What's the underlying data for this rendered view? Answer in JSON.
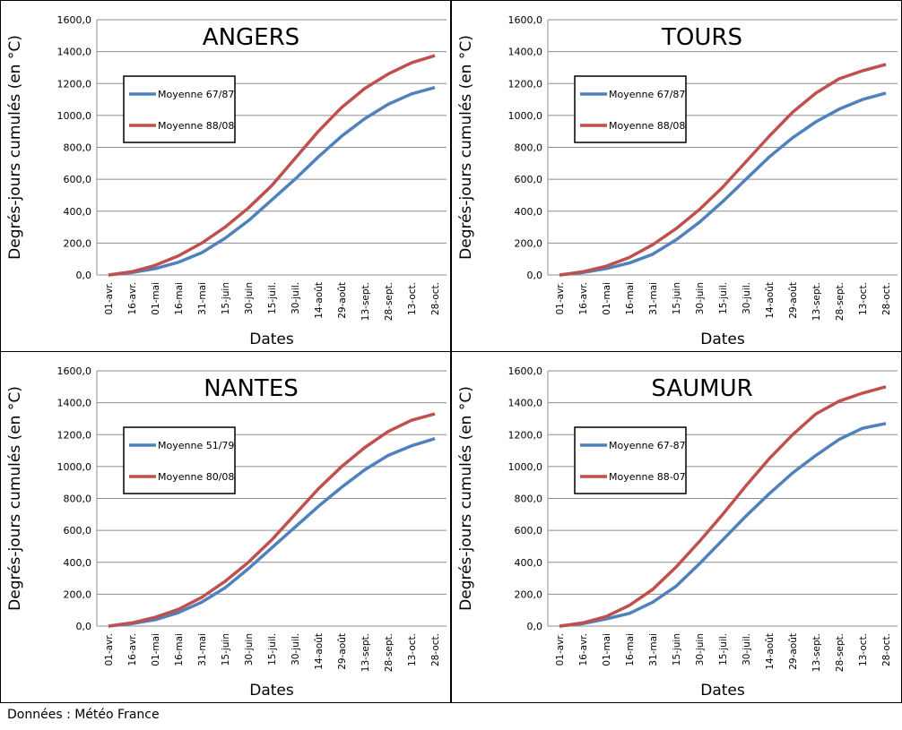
{
  "chart_data": [
    {
      "type": "line",
      "title": "ANGERS",
      "y_label": "Degrés-jours cumulés (en °C)",
      "x_label": "Dates",
      "categories": [
        "01-avr.",
        "16-avr.",
        "01-mai",
        "16-mai",
        "31-mai",
        "15-juin",
        "30-juin",
        "15-juil.",
        "30-juil.",
        "14-août",
        "29-août",
        "13-sept.",
        "28-sept.",
        "13-oct.",
        "28-oct."
      ],
      "series": [
        {
          "name": "Moyenne 67/87",
          "color": "#4f81bd",
          "values": [
            0,
            15,
            40,
            80,
            140,
            230,
            340,
            470,
            600,
            740,
            870,
            980,
            1070,
            1135,
            1175
          ]
        },
        {
          "name": "Moyenne 88/08",
          "color": "#c0504d",
          "values": [
            0,
            20,
            60,
            120,
            200,
            300,
            420,
            560,
            730,
            900,
            1050,
            1170,
            1260,
            1330,
            1375
          ]
        }
      ],
      "ylim": [
        0,
        1600
      ],
      "yticks": [
        {
          "value": 0,
          "label": "0,0"
        },
        {
          "value": 200,
          "label": "200,0"
        },
        {
          "value": 400,
          "label": "400,0"
        },
        {
          "value": 600,
          "label": "600,0"
        },
        {
          "value": 800,
          "label": "800,0"
        },
        {
          "value": 1000,
          "label": "1000,0"
        },
        {
          "value": 1200,
          "label": "1200,0"
        },
        {
          "value": 1400,
          "label": "1400,0"
        },
        {
          "value": 1600,
          "label": "1600,0"
        }
      ],
      "grid": true
    },
    {
      "type": "line",
      "title": "TOURS",
      "y_label": "Degrés-jours cumulés (en °C)",
      "x_label": "Dates",
      "categories": [
        "01-avr.",
        "16-avr.",
        "01-mai",
        "16-mai",
        "31-mai",
        "15-juin",
        "30-juin",
        "15-juil.",
        "30-juil.",
        "14-août",
        "29-août",
        "13-sept.",
        "28-sept.",
        "13-oct.",
        "28-oct."
      ],
      "series": [
        {
          "name": "Moyenne 67/87",
          "color": "#4f81bd",
          "values": [
            0,
            15,
            40,
            75,
            130,
            220,
            330,
            460,
            600,
            740,
            860,
            960,
            1040,
            1100,
            1140
          ]
        },
        {
          "name": "Moyenne 88/08",
          "color": "#c0504d",
          "values": [
            0,
            20,
            55,
            110,
            190,
            290,
            410,
            550,
            710,
            870,
            1020,
            1140,
            1230,
            1280,
            1320
          ]
        }
      ],
      "ylim": [
        0,
        1600
      ],
      "yticks": [
        {
          "value": 0,
          "label": "0,0"
        },
        {
          "value": 200,
          "label": "200,0"
        },
        {
          "value": 400,
          "label": "400,0"
        },
        {
          "value": 600,
          "label": "600,0"
        },
        {
          "value": 800,
          "label": "800,0"
        },
        {
          "value": 1000,
          "label": "1000,0"
        },
        {
          "value": 1200,
          "label": "1200,0"
        },
        {
          "value": 1400,
          "label": "1400,0"
        },
        {
          "value": 1600,
          "label": "1600,0"
        }
      ],
      "grid": true
    },
    {
      "type": "line",
      "title": "NANTES",
      "y_label": "Degrés-jours cumulés (en °C)",
      "x_label": "Dates",
      "categories": [
        "01-avr.",
        "16-avr.",
        "01-mai",
        "16-mai",
        "31-mai",
        "15-juin",
        "30-juin",
        "15-juil.",
        "30-juil.",
        "14-août",
        "29-août",
        "13-sept.",
        "28-sept.",
        "13-oct.",
        "28-oct."
      ],
      "series": [
        {
          "name": "Moyenne 51/79",
          "color": "#4f81bd",
          "values": [
            0,
            15,
            40,
            85,
            150,
            240,
            360,
            490,
            620,
            750,
            870,
            980,
            1070,
            1130,
            1175
          ]
        },
        {
          "name": "Moyenne 80/08",
          "color": "#c0504d",
          "values": [
            0,
            20,
            55,
            105,
            180,
            280,
            400,
            540,
            700,
            860,
            1000,
            1120,
            1220,
            1290,
            1330
          ]
        }
      ],
      "ylim": [
        0,
        1600
      ],
      "yticks": [
        {
          "value": 0,
          "label": "0,0"
        },
        {
          "value": 200,
          "label": "200,0"
        },
        {
          "value": 400,
          "label": "400,0"
        },
        {
          "value": 600,
          "label": "600,0"
        },
        {
          "value": 800,
          "label": "800,0"
        },
        {
          "value": 1000,
          "label": "1000,0"
        },
        {
          "value": 1200,
          "label": "1200,0"
        },
        {
          "value": 1400,
          "label": "1400,0"
        },
        {
          "value": 1600,
          "label": "1600,0"
        }
      ],
      "grid": true
    },
    {
      "type": "line",
      "title": "SAUMUR",
      "y_label": "Degrés-jours cumulés (en °C)",
      "x_label": "Dates",
      "categories": [
        "01-avr.",
        "16-avr.",
        "01-mai",
        "16-mai",
        "31-mai",
        "15-juin",
        "30-juin",
        "15-juil.",
        "30-juil.",
        "14-août",
        "29-août",
        "13-sept.",
        "28-sept.",
        "13-oct.",
        "28-oct."
      ],
      "series": [
        {
          "name": "Moyenne 67-87",
          "color": "#4f81bd",
          "values": [
            0,
            15,
            45,
            80,
            150,
            250,
            390,
            540,
            690,
            830,
            960,
            1070,
            1170,
            1240,
            1270
          ]
        },
        {
          "name": "Moyenne 88-07",
          "color": "#c0504d",
          "values": [
            0,
            20,
            60,
            130,
            230,
            370,
            530,
            700,
            880,
            1050,
            1200,
            1330,
            1410,
            1460,
            1500
          ]
        }
      ],
      "ylim": [
        0,
        1600
      ],
      "yticks": [
        {
          "value": 0,
          "label": "0,0"
        },
        {
          "value": 200,
          "label": "200,0"
        },
        {
          "value": 400,
          "label": "400,0"
        },
        {
          "value": 600,
          "label": "600,0"
        },
        {
          "value": 800,
          "label": "800,0"
        },
        {
          "value": 1000,
          "label": "1000,0"
        },
        {
          "value": 1200,
          "label": "1200,0"
        },
        {
          "value": 1400,
          "label": "1400,0"
        },
        {
          "value": 1600,
          "label": "1600,0"
        }
      ],
      "grid": true
    }
  ],
  "source": "Données : Météo France"
}
